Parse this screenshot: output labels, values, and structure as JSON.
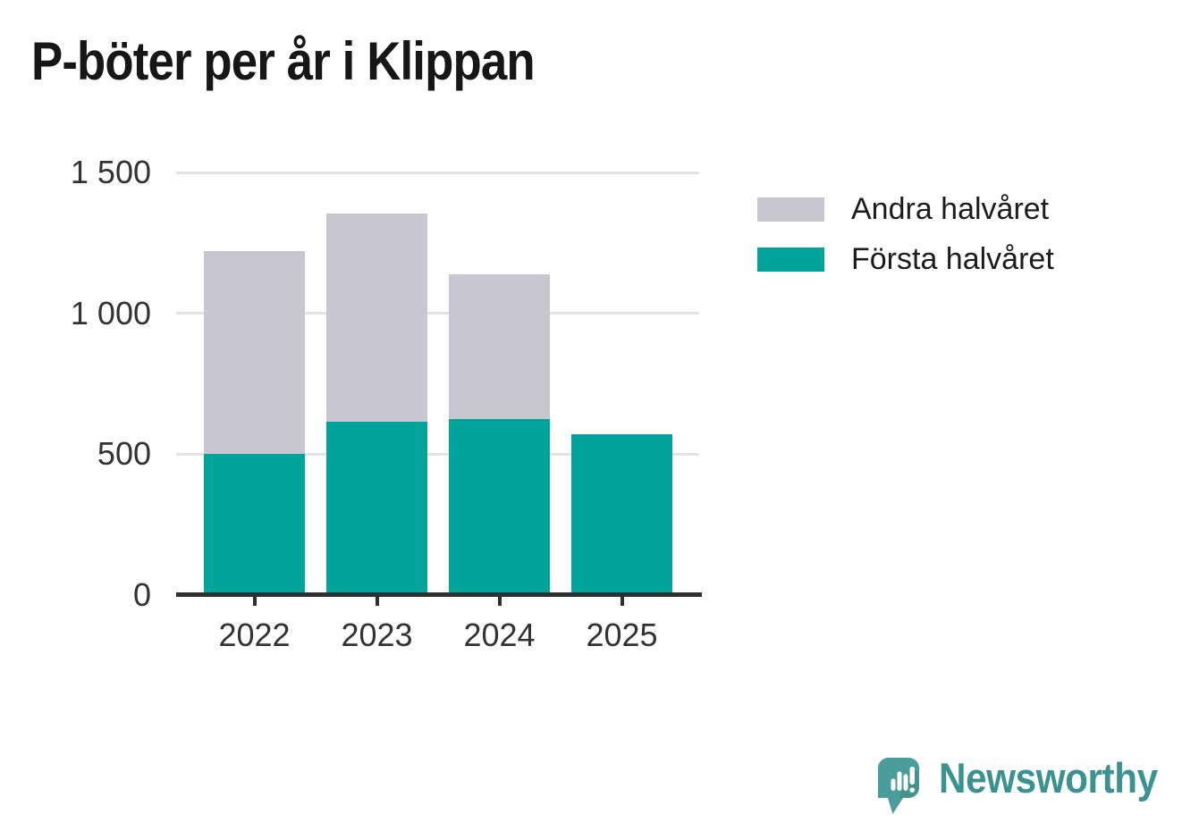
{
  "title": "P-böter per år i Klippan",
  "chart_data": {
    "type": "bar",
    "stacked": true,
    "categories": [
      "2022",
      "2023",
      "2024",
      "2025"
    ],
    "series": [
      {
        "name": "Första halvåret",
        "color": "#00a49b",
        "values": [
          500,
          615,
          625,
          570
        ]
      },
      {
        "name": "Andra halvåret",
        "color": "#c8c6d0",
        "values": [
          720,
          740,
          515,
          0
        ]
      }
    ],
    "totals": [
      1220,
      1355,
      1140,
      570
    ],
    "xlabel": "",
    "ylabel": "",
    "ylim": [
      0,
      1500
    ],
    "yticks": [
      {
        "value": 0,
        "label": "0"
      },
      {
        "value": 500,
        "label": "500"
      },
      {
        "value": 1000,
        "label": "1 000"
      },
      {
        "value": 1500,
        "label": "1 500"
      }
    ],
    "grid": "horizontal-on",
    "legend_position": "top-right"
  },
  "legend": {
    "items": [
      {
        "label": "Andra halvåret",
        "color": "#c8c6d0"
      },
      {
        "label": "Första halvåret",
        "color": "#00a49b"
      }
    ]
  },
  "branding": {
    "name": "Newsworthy",
    "icon": "newsworthy-speech-bubble-barchart-icon",
    "icon_color": "#4a9d9a",
    "text_color": "#3b9391"
  },
  "colors": {
    "background": "#ffffff",
    "title_text": "#161616",
    "axis_line": "#303030",
    "tick_mark": "#303030",
    "axis_label_text": "#333333",
    "legend_text": "#1c1c1c",
    "gridline": "#e3e3e6",
    "bar_teal": "#00a49b",
    "bar_gray": "#c8c6d0"
  }
}
